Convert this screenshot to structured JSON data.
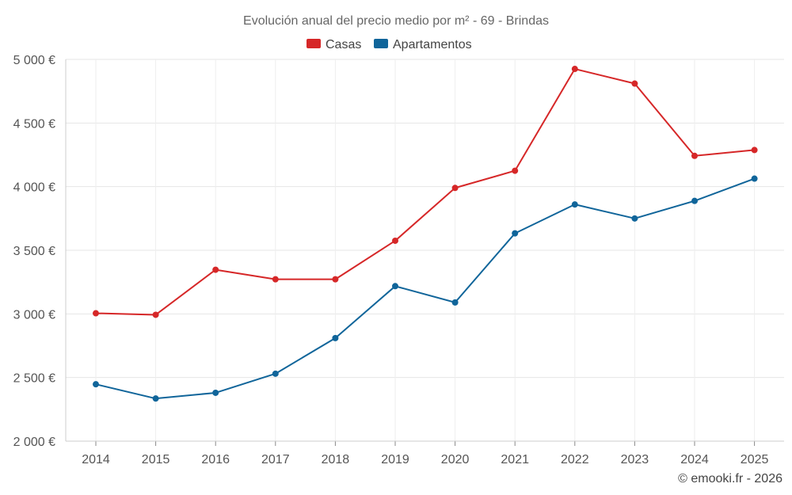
{
  "chart_data": {
    "type": "line",
    "title": "Evolución anual del precio medio por m² - 69 - Brindas",
    "categories": [
      "2014",
      "2015",
      "2016",
      "2017",
      "2018",
      "2019",
      "2020",
      "2021",
      "2022",
      "2023",
      "2024",
      "2025"
    ],
    "y_ticks": [
      {
        "value": 2000,
        "label": "2 000 €"
      },
      {
        "value": 2500,
        "label": "2 500 €"
      },
      {
        "value": 3000,
        "label": "3 000 €"
      },
      {
        "value": 3500,
        "label": "3 500 €"
      },
      {
        "value": 4000,
        "label": "4 000 €"
      },
      {
        "value": 4500,
        "label": "4 500 €"
      },
      {
        "value": 5000,
        "label": "5 000 €"
      }
    ],
    "ylim": [
      2000,
      5000
    ],
    "grid": true,
    "legend_position": "top-center",
    "series": [
      {
        "name": "Casas",
        "color": "#d62728",
        "values": [
          3005,
          2993,
          3347,
          3272,
          3272,
          3575,
          3990,
          4125,
          4925,
          4810,
          4242,
          4288
        ]
      },
      {
        "name": "Apartamentos",
        "color": "#10659a",
        "values": [
          2447,
          2335,
          2380,
          2530,
          2810,
          3218,
          3090,
          3633,
          3860,
          3750,
          3888,
          4063
        ]
      }
    ]
  },
  "credit": "© emooki.fr - 2026"
}
